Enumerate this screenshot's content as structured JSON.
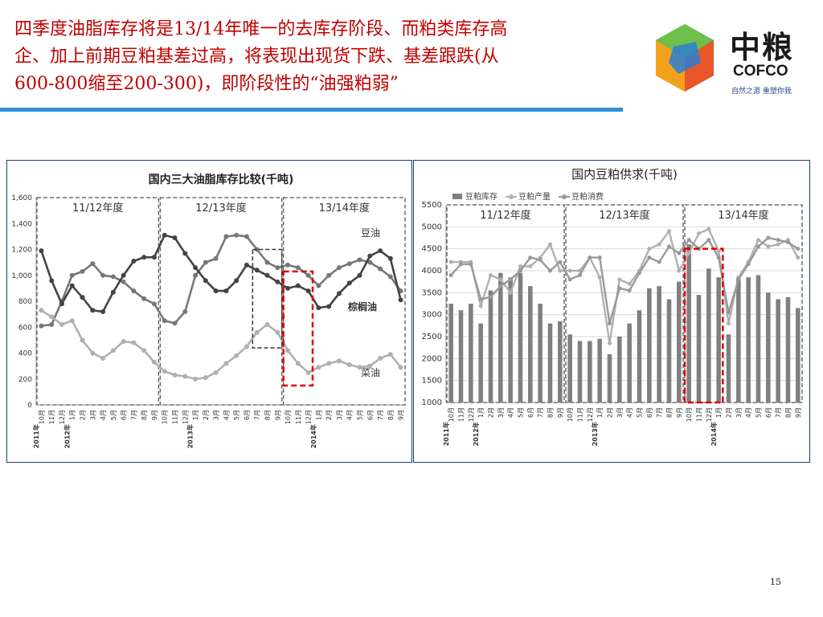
{
  "slide": {
    "title_lines": [
      "四季度油脂库存将是13/14年唯一的去库存阶段、而粕类库存高",
      "企、加上前期豆粕基差过高，将表现出现货下跌、基差跟跌(从",
      "600-800缩至200-300)，即阶段性的“油强粕弱”"
    ],
    "page_number": "15",
    "logo": {
      "name_cn": "中粮",
      "name_en": "COFCO",
      "slogan": "自然之源 重塑你我"
    },
    "colors": {
      "title": "#c00000",
      "rule": "#2f8fd6",
      "panel_border": "#1f3b78",
      "highlight": "#e00000"
    }
  },
  "chart_data": [
    {
      "type": "line",
      "title": "国内三大油脂库存比较(千吨)",
      "ylim": [
        0,
        1600
      ],
      "yticks": [
        0,
        200,
        400,
        600,
        800,
        1000,
        1200,
        1400,
        1600
      ],
      "ytick_labels": [
        "0",
        "200",
        "400",
        "600",
        "800",
        "1,000",
        "1,200",
        "1,400",
        "1,600"
      ],
      "x": [
        "10月",
        "11月",
        "12月",
        "1月",
        "2月",
        "3月",
        "4月",
        "5月",
        "6月",
        "7月",
        "8月",
        "9月",
        "10月",
        "11月",
        "12月",
        "1月",
        "2月",
        "3月",
        "4月",
        "5月",
        "6月",
        "7月",
        "8月",
        "9月",
        "10月",
        "11月",
        "12月",
        "1月",
        "2月",
        "3月",
        "4月",
        "5月",
        "6月",
        "7月",
        "8月",
        "9月"
      ],
      "year_labels": [
        {
          "index": 0,
          "text": "2011年"
        },
        {
          "index": 3,
          "text": "2012年"
        },
        {
          "index": 15,
          "text": "2013年"
        },
        {
          "index": 27,
          "text": "2014年"
        }
      ],
      "periods": [
        {
          "label": "11/12年度",
          "start": 0,
          "end": 11
        },
        {
          "label": "12/13年度",
          "start": 12,
          "end": 23
        },
        {
          "label": "13/14年度",
          "start": 24,
          "end": 35
        }
      ],
      "series": [
        {
          "name": "豆油",
          "color": "#777777",
          "values": [
            610,
            620,
            800,
            1000,
            1030,
            1090,
            1000,
            990,
            950,
            880,
            820,
            780,
            650,
            630,
            720,
            1000,
            1100,
            1130,
            1300,
            1310,
            1300,
            1200,
            1100,
            1060,
            1080,
            1060,
            1000,
            920,
            1000,
            1060,
            1090,
            1120,
            1100,
            1050,
            990,
            880
          ]
        },
        {
          "name": "棕榈油",
          "color": "#444444",
          "values": [
            1190,
            960,
            780,
            920,
            830,
            730,
            720,
            870,
            1000,
            1110,
            1140,
            1140,
            1310,
            1290,
            1170,
            1060,
            960,
            880,
            880,
            960,
            1080,
            1040,
            1000,
            950,
            900,
            920,
            880,
            750,
            760,
            860,
            940,
            1000,
            1150,
            1190,
            1130,
            810
          ]
        },
        {
          "name": "菜油",
          "color": "#b0b0b0",
          "values": [
            730,
            680,
            620,
            650,
            500,
            400,
            360,
            420,
            490,
            480,
            420,
            330,
            260,
            230,
            220,
            200,
            210,
            250,
            320,
            380,
            450,
            560,
            620,
            560,
            420,
            320,
            250,
            290,
            320,
            340,
            310,
            290,
            300,
            360,
            390,
            290
          ]
        }
      ],
      "labels": [
        {
          "text": "豆油",
          "series": "豆油"
        },
        {
          "text": "棕榈油",
          "series": "棕榈油"
        },
        {
          "text": "菜油",
          "series": "菜油"
        }
      ],
      "highlights": [
        {
          "style": "dashed-black",
          "x_start": 21,
          "x_end": 23,
          "y_start": 440,
          "y_end": 1200
        },
        {
          "style": "dashed-red",
          "x_start": 24,
          "x_end": 26,
          "y_start": 150,
          "y_end": 1030
        }
      ],
      "grid": false
    },
    {
      "type": "bar+line",
      "title": "国内豆粕供求(千吨)",
      "ylim": [
        1000,
        5500
      ],
      "yticks": [
        1000,
        1500,
        2000,
        2500,
        3000,
        3500,
        4000,
        4500,
        5000,
        5500
      ],
      "ytick_labels": [
        "1000",
        "1500",
        "2000",
        "2500",
        "3000",
        "3500",
        "4000",
        "4500",
        "5000",
        "5500"
      ],
      "x": [
        "10月",
        "11月",
        "12月",
        "1月",
        "2月",
        "3月",
        "4月",
        "5月",
        "6月",
        "7月",
        "8月",
        "9月",
        "10月",
        "11月",
        "12月",
        "1月",
        "2月",
        "3月",
        "4月",
        "5月",
        "6月",
        "7月",
        "8月",
        "9月",
        "10月",
        "11月",
        "12月",
        "1月",
        "2月",
        "3月",
        "4月",
        "5月",
        "6月",
        "7月",
        "8月",
        "9月"
      ],
      "year_labels": [
        {
          "index": 0,
          "text": "2011年"
        },
        {
          "index": 3,
          "text": "2012年"
        },
        {
          "index": 15,
          "text": "2013年"
        },
        {
          "index": 27,
          "text": "2014年"
        }
      ],
      "periods": [
        {
          "label": "11/12年度",
          "start": 0,
          "end": 11
        },
        {
          "label": "12/13年度",
          "start": 12,
          "end": 23
        },
        {
          "label": "13/14年度",
          "start": 24,
          "end": 35
        }
      ],
      "legend": [
        "豆粕库存",
        "豆粕产量",
        "豆粕消费"
      ],
      "series": [
        {
          "name": "豆粕库存",
          "kind": "bar",
          "color": "#7f7f7f",
          "values": [
            3250,
            3100,
            3250,
            2800,
            3550,
            3950,
            3850,
            3950,
            3650,
            3250,
            2800,
            2850,
            2550,
            2400,
            2400,
            2450,
            2100,
            2500,
            2800,
            3100,
            3600,
            3650,
            3350,
            3750,
            4600,
            3450,
            4050,
            3850,
            2550,
            3850,
            3850,
            3900,
            3500,
            3350,
            3400,
            3150
          ]
        },
        {
          "name": "豆粕产量",
          "kind": "line",
          "color": "#b0b0b0",
          "values": [
            4200,
            4200,
            4200,
            3200,
            3900,
            3800,
            3500,
            4100,
            4100,
            4300,
            4600,
            4000,
            4000,
            4000,
            4300,
            3850,
            2350,
            3800,
            3700,
            4000,
            4500,
            4600,
            4900,
            4000,
            4400,
            4850,
            4950,
            4450,
            2800,
            3850,
            4200,
            4700,
            4550,
            4600,
            4700,
            4300
          ]
        },
        {
          "name": "豆粕消费",
          "kind": "line",
          "color": "#999999",
          "values": [
            3900,
            4150,
            4150,
            3350,
            3400,
            3650,
            3800,
            4000,
            4300,
            4250,
            4000,
            4200,
            3800,
            3900,
            4300,
            4300,
            2800,
            3600,
            3550,
            3950,
            4300,
            4200,
            4550,
            4400,
            4700,
            4500,
            4700,
            4300,
            3050,
            3800,
            4150,
            4550,
            4750,
            4700,
            4650,
            4500
          ]
        }
      ],
      "highlights": [
        {
          "style": "dashed-red",
          "x_start": 24,
          "x_end": 27,
          "y_start": 1000,
          "y_end": 4500
        }
      ],
      "grid": true
    }
  ]
}
